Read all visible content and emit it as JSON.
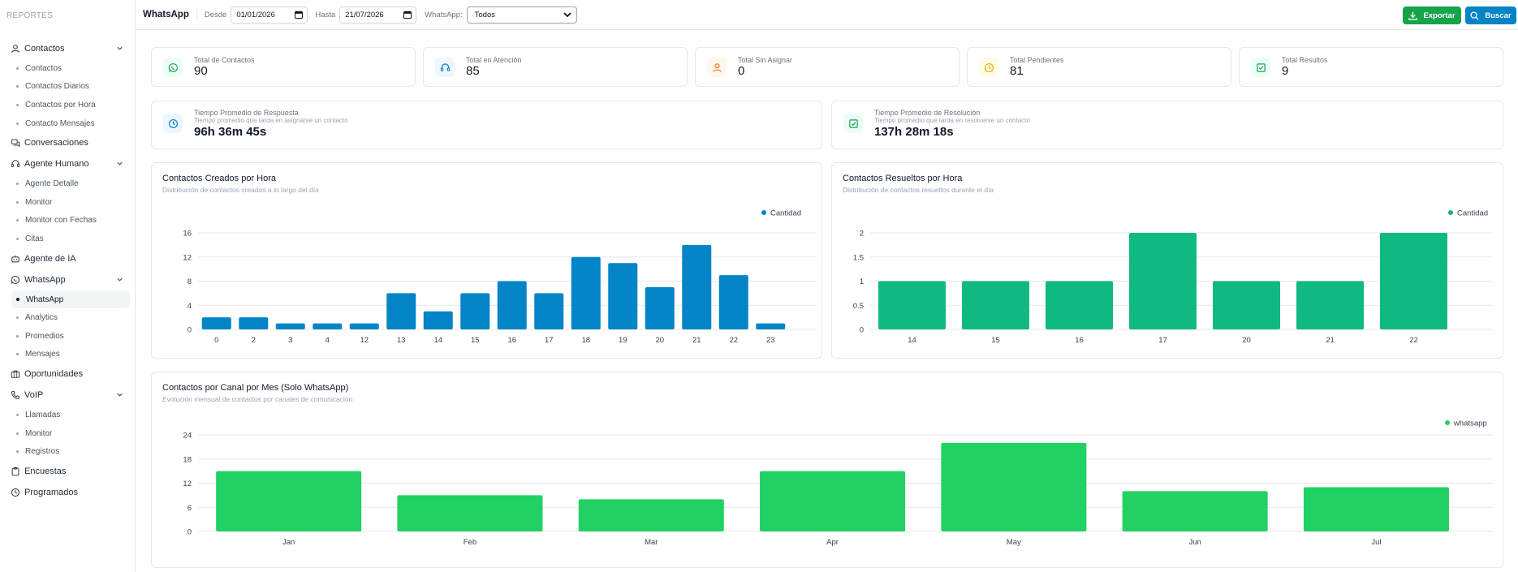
{
  "sidebar": {
    "brand": "REPORTES",
    "sections": [
      {
        "label": "Contactos",
        "icon": "user-icon",
        "expandable": true,
        "items": [
          "Contactos",
          "Contactos Diarios",
          "Contactos por Hora",
          "Contacto Mensajes"
        ]
      },
      {
        "label": "Conversaciones",
        "icon": "chat-icon",
        "expandable": false,
        "items": []
      },
      {
        "label": "Agente Humano",
        "icon": "headset-icon",
        "expandable": true,
        "items": [
          "Agente Detalle",
          "Monitor",
          "Monitor con Fechas",
          "Citas"
        ]
      },
      {
        "label": "Agente de IA",
        "icon": "robot-icon",
        "expandable": false,
        "items": []
      },
      {
        "label": "WhatsApp",
        "icon": "whatsapp-icon",
        "expandable": true,
        "items": [
          "WhatsApp",
          "Analytics",
          "Promedios",
          "Mensajes"
        ],
        "active_item": "WhatsApp"
      },
      {
        "label": "Oportunidades",
        "icon": "briefcase-icon",
        "expandable": false,
        "items": []
      },
      {
        "label": "VoIP",
        "icon": "phone-icon",
        "expandable": true,
        "items": [
          "Llamadas",
          "Monitor",
          "Registros"
        ]
      },
      {
        "label": "Encuestas",
        "icon": "clipboard-icon",
        "expandable": false,
        "items": []
      },
      {
        "label": "Programados",
        "icon": "clock-icon",
        "expandable": false,
        "items": []
      }
    ]
  },
  "header": {
    "title": "WhatsApp",
    "desde_label": "Desde",
    "desde_value": "01/01/2026",
    "hasta_label": "Hasta",
    "hasta_value": "21/07/2026",
    "whatsapp_label": "WhatsApp:",
    "whatsapp_value": "Todos",
    "export_label": "Exportar",
    "search_label": "Buscar"
  },
  "stats": [
    {
      "label": "Total de Contactos",
      "value": "90",
      "icon": "whatsapp-icon",
      "color": "#16a34a",
      "bg": "#ecfdf5"
    },
    {
      "label": "Total en Atención",
      "value": "85",
      "icon": "headset-icon",
      "color": "#0284c7",
      "bg": "#eff6ff"
    },
    {
      "label": "Total Sin Asignar",
      "value": "0",
      "icon": "user-icon",
      "color": "#f97316",
      "bg": "#fff7ed"
    },
    {
      "label": "Total Pendientes",
      "value": "81",
      "icon": "clock-icon",
      "color": "#eab308",
      "bg": "#fefce8"
    },
    {
      "label": "Total Resultos",
      "value": "9",
      "icon": "check-square-icon",
      "color": "#16a34a",
      "bg": "#ecfdf5"
    }
  ],
  "times": [
    {
      "label": "Tiempo Promedio de Respuesta",
      "sub": "Tiempo promedio que tarda en asignarse un contacto",
      "value": "96h 36m 45s",
      "icon": "clock-icon",
      "color": "#0284c7",
      "bg": "#eff6ff"
    },
    {
      "label": "Tiempo Promedio de Resolución",
      "sub": "Tiempo promedio que tarda en resolverse un contacto",
      "value": "137h 28m 18s",
      "icon": "check-square-icon",
      "color": "#16a34a",
      "bg": "#ecfdf5"
    }
  ],
  "chart_data": [
    {
      "type": "bar",
      "title": "Contactos Creados por Hora",
      "subtitle": "Distribución de contactos creados a lo largo del día",
      "categories": [
        "0",
        "2",
        "3",
        "4",
        "12",
        "13",
        "14",
        "15",
        "16",
        "17",
        "18",
        "19",
        "20",
        "21",
        "22",
        "23"
      ],
      "series": [
        {
          "name": "Cantidad",
          "values": [
            2,
            2,
            1,
            1,
            1,
            6,
            3,
            6,
            8,
            6,
            12,
            11,
            7,
            14,
            9,
            1
          ]
        }
      ],
      "yticks": [
        "0",
        "4",
        "8",
        "12",
        "16"
      ],
      "ylim": [
        0,
        16
      ],
      "color": "#0284c7",
      "grid": true,
      "legend": "top-right"
    },
    {
      "type": "bar",
      "title": "Contactos Resueltos por Hora",
      "subtitle": "Distribución de contactos resueltos durante el día",
      "categories": [
        "14",
        "15",
        "16",
        "17",
        "20",
        "21",
        "22"
      ],
      "series": [
        {
          "name": "Cantidad",
          "values": [
            1,
            1,
            1,
            2,
            1,
            1,
            2
          ]
        }
      ],
      "yticks": [
        "0",
        "0.5",
        "1",
        "1.5",
        "2"
      ],
      "ylim": [
        0,
        2
      ],
      "color": "#10b981",
      "grid": true,
      "legend": "top-right"
    },
    {
      "type": "bar",
      "title": "Contactos por Canal por Mes (Solo WhatsApp)",
      "subtitle": "Evolución mensual de contactos por canales de comunicación",
      "categories": [
        "Jan",
        "Feb",
        "Mar",
        "Apr",
        "May",
        "Jun",
        "Jul"
      ],
      "series": [
        {
          "name": "whatsapp",
          "values": [
            15,
            9,
            8,
            15,
            22,
            10,
            11
          ]
        }
      ],
      "yticks": [
        "0",
        "6",
        "12",
        "18",
        "24"
      ],
      "ylim": [
        0,
        24
      ],
      "color": "#22d163",
      "grid": true,
      "legend": "top-right"
    }
  ]
}
